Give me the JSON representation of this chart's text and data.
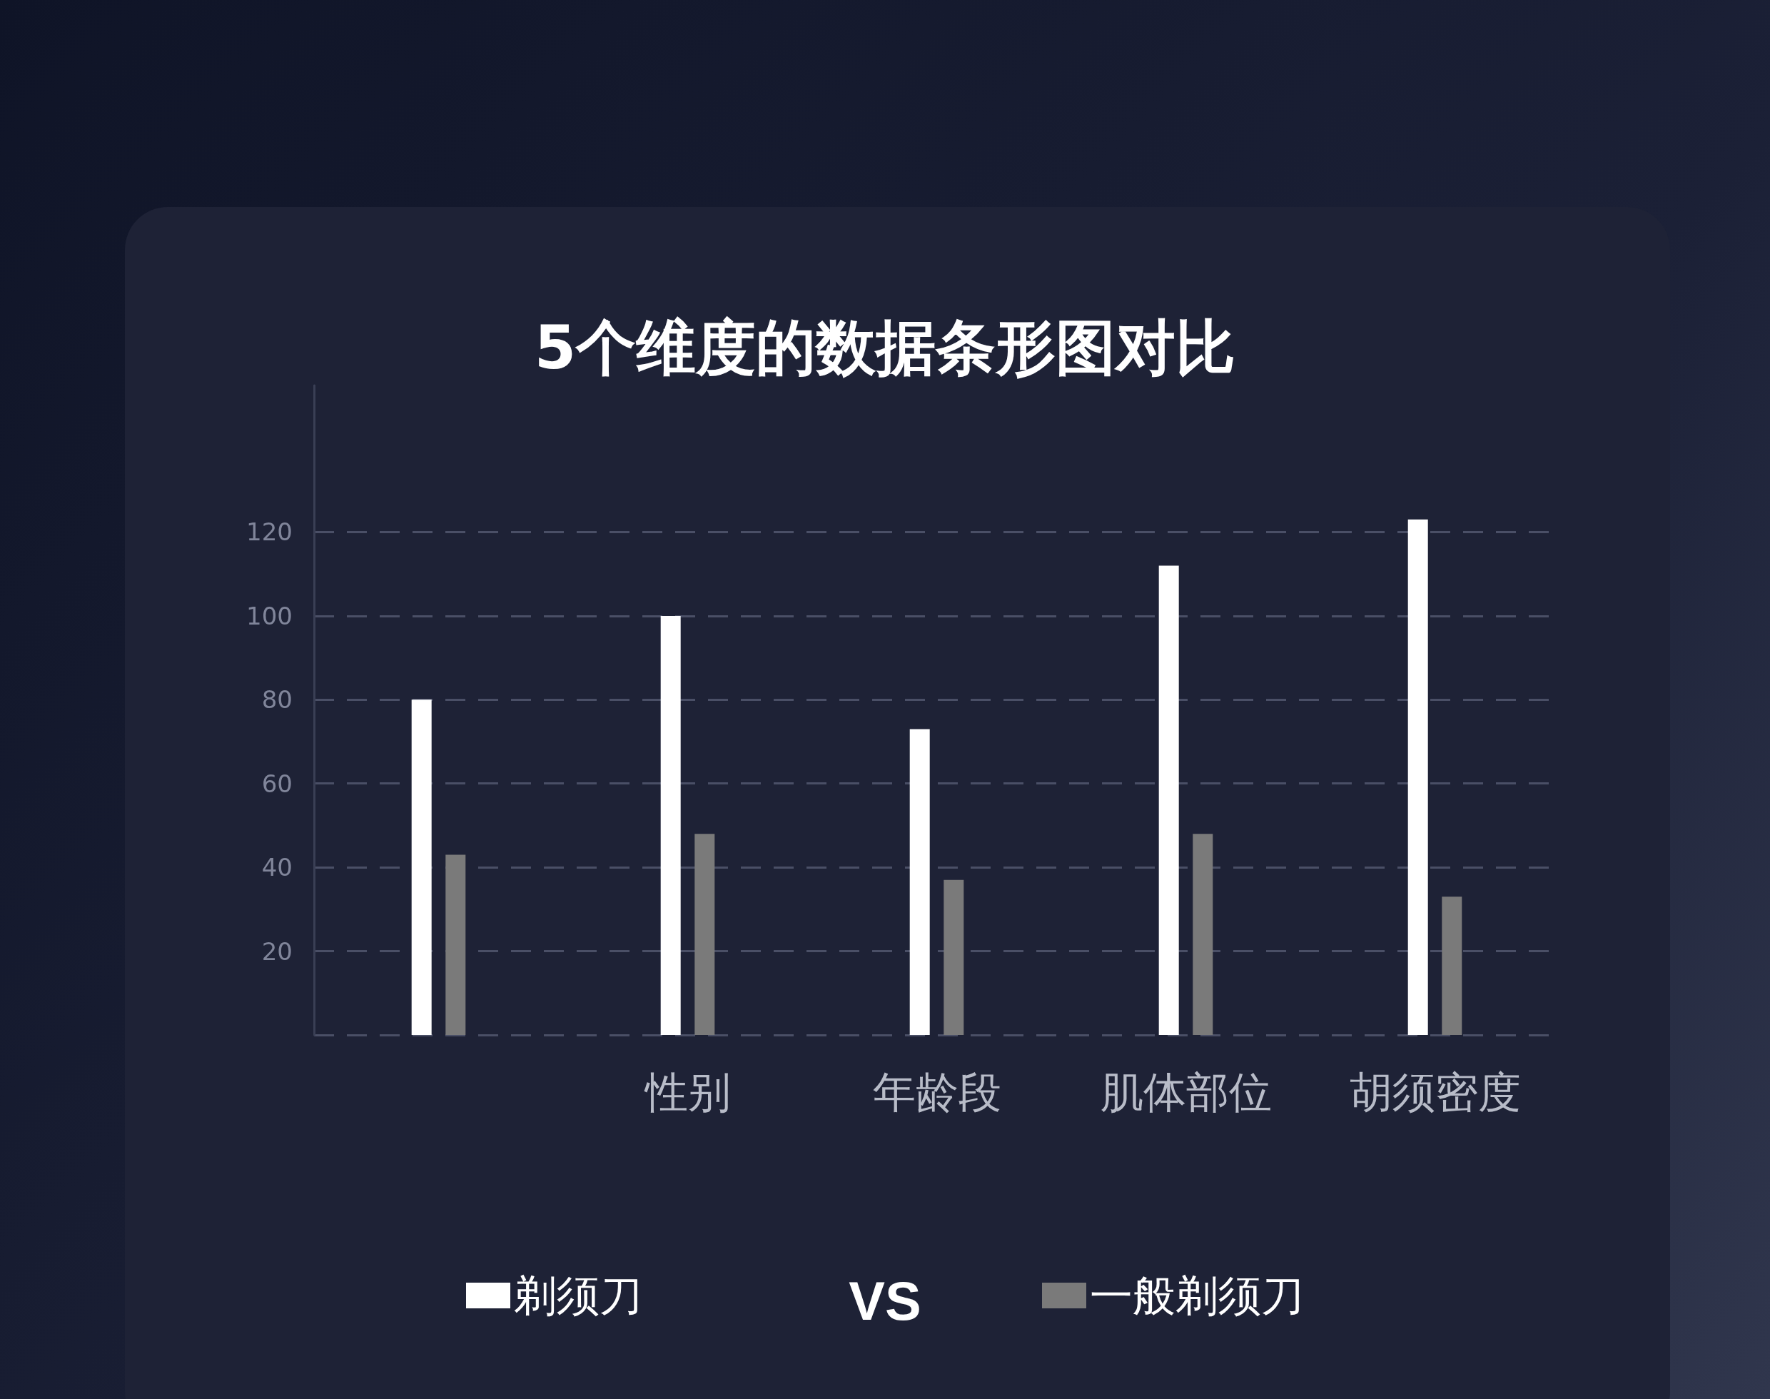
{
  "chart_data": {
    "type": "bar",
    "title": "5个维度的数据条形图对比",
    "categories": [
      null,
      "性别",
      "年龄段",
      "肌体部位",
      "胡须密度"
    ],
    "series": [
      {
        "name": "剃须刀",
        "color": "#ffffff",
        "values": [
          80,
          100,
          73,
          112,
          123
        ]
      },
      {
        "name": "一般剃须刀",
        "color": "#7a7a7a",
        "values": [
          43,
          48,
          37,
          48,
          33
        ]
      }
    ],
    "ylim": [
      0,
      155
    ],
    "yticks": [
      {
        "value": 0,
        "label": null
      },
      20,
      40,
      60,
      80,
      100,
      120
    ],
    "grid": "y",
    "legend": "bottom",
    "annotations": [
      "VS"
    ]
  }
}
